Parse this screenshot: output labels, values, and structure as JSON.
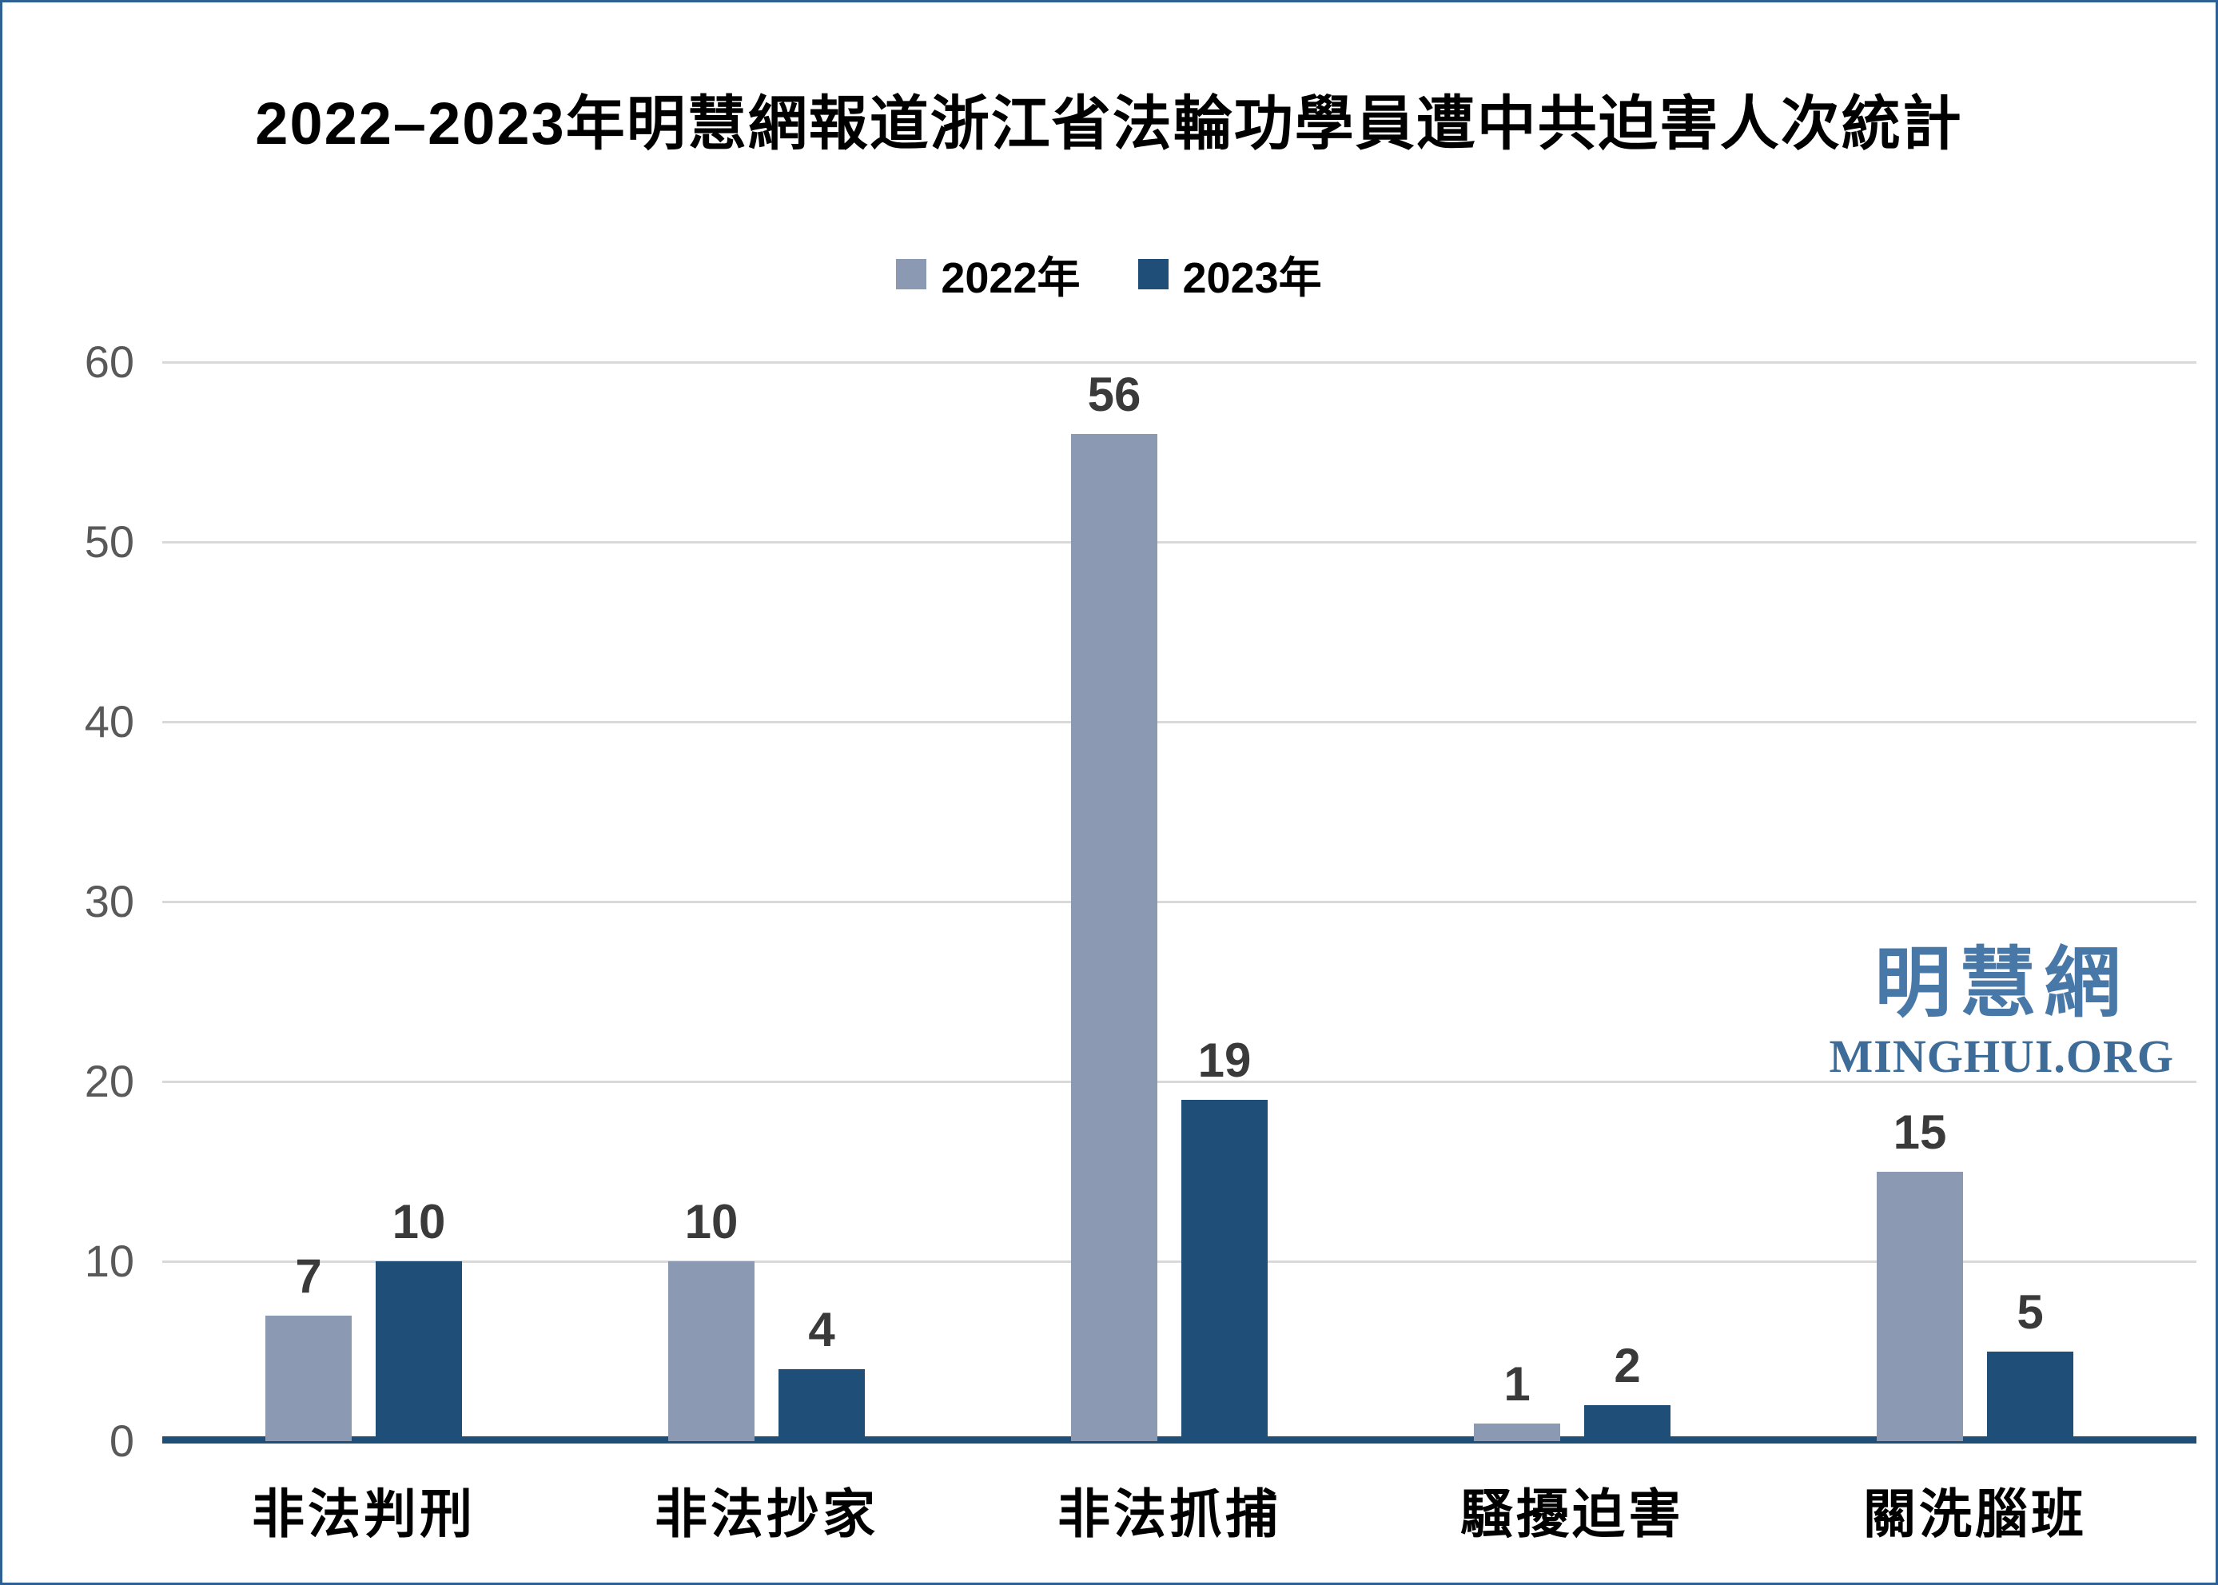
{
  "title": "2022–2023年明慧網報道浙江省法輪功學員遭中共迫害人次統計",
  "watermark": {
    "cjk": "明慧網",
    "latin": "MINGHUI.ORG"
  },
  "colors": {
    "border": "#2F6093",
    "gridline": "#D9D9D9",
    "axis_line": "#1F4E79",
    "tick_label": "#595959",
    "value_label": "#3A3A3A",
    "series_2022": "#8B9AB2",
    "series_2023": "#1F4E79",
    "watermark_cjk": "#4878A8",
    "watermark_latin": "#3E6C99"
  },
  "chart_data": {
    "type": "bar",
    "title": "2022–2023年明慧網報道浙江省法輪功學員遭中共迫害人次統計",
    "categories": [
      "非法判刑",
      "非法抄家",
      "非法抓捕",
      "騷擾迫害",
      "關洗腦班"
    ],
    "series": [
      {
        "name": "2022年",
        "color": "#8B9AB2",
        "values": [
          7,
          10,
          56,
          1,
          15
        ]
      },
      {
        "name": "2023年",
        "color": "#1F4E79",
        "values": [
          10,
          4,
          19,
          2,
          5
        ]
      }
    ],
    "xlabel": "",
    "ylabel": "",
    "ylim": [
      0,
      60
    ],
    "yticks": [
      0,
      10,
      20,
      30,
      40,
      50,
      60
    ],
    "grid": true,
    "legend_position": "top-center",
    "value_labels": true
  }
}
